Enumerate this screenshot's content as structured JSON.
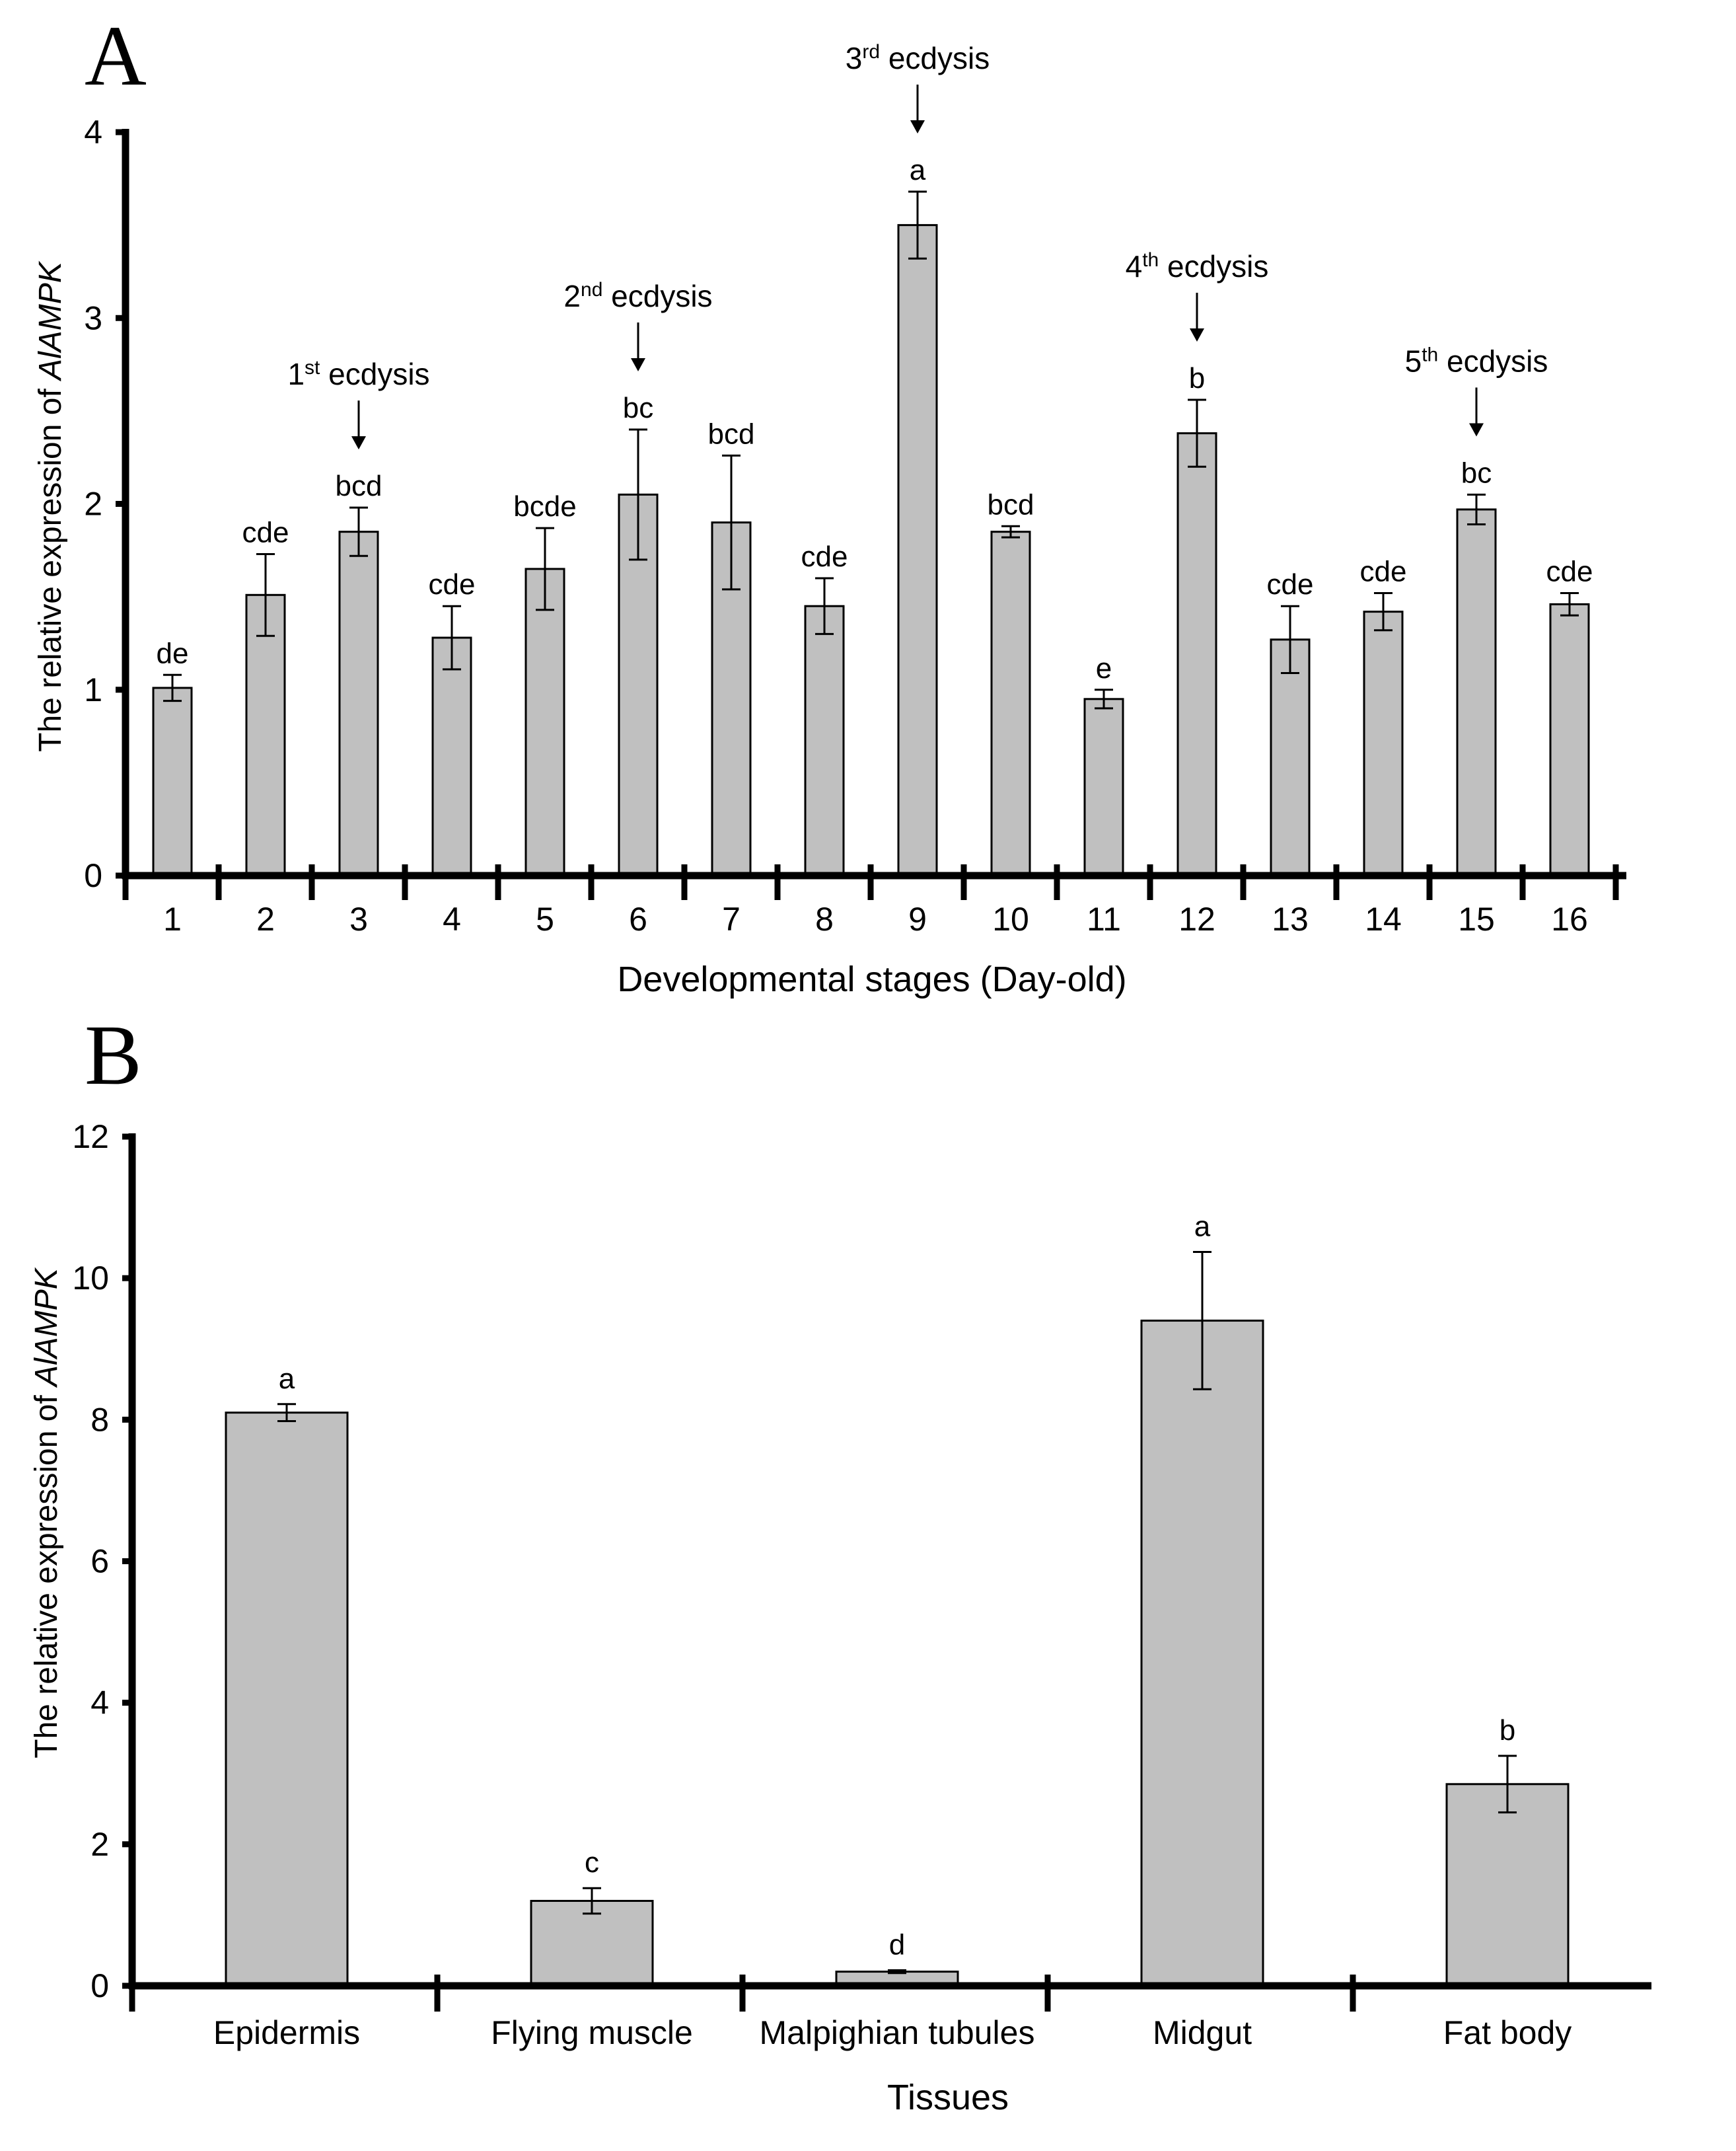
{
  "chart_data": [
    {
      "panel": "A",
      "type": "bar",
      "ylabel": {
        "prefix": "The relative expression of ",
        "gene": "AlAMPK"
      },
      "xlabel": "Developmental stages (Day-old)",
      "ylim": [
        0,
        4
      ],
      "yticks": [
        "0",
        "1",
        "2",
        "3",
        "4"
      ],
      "categories": [
        "1",
        "2",
        "3",
        "4",
        "5",
        "6",
        "7",
        "8",
        "9",
        "10",
        "11",
        "12",
        "13",
        "14",
        "15",
        "16"
      ],
      "values": [
        1.01,
        1.51,
        1.85,
        1.28,
        1.65,
        2.05,
        1.9,
        1.45,
        3.5,
        1.85,
        0.95,
        2.38,
        1.27,
        1.42,
        1.97,
        1.46
      ],
      "errors": [
        0.07,
        0.22,
        0.13,
        0.17,
        0.22,
        0.35,
        0.36,
        0.15,
        0.18,
        0.03,
        0.05,
        0.18,
        0.18,
        0.1,
        0.08,
        0.06
      ],
      "significance": [
        "de",
        "cde",
        "bcd",
        "cde",
        "bcde",
        "bc",
        "bcd",
        "cde",
        "a",
        "bcd",
        "e",
        "b",
        "cde",
        "cde",
        "bc",
        "cde"
      ],
      "annotations": [
        {
          "category": "3",
          "ordinal": "1",
          "suffix": "st",
          "label": "ecdysis"
        },
        {
          "category": "6",
          "ordinal": "2",
          "suffix": "nd",
          "label": "ecdysis"
        },
        {
          "category": "9",
          "ordinal": "3",
          "suffix": "rd",
          "label": "ecdysis"
        },
        {
          "category": "12",
          "ordinal": "4",
          "suffix": "th",
          "label": "ecdysis"
        },
        {
          "category": "15",
          "ordinal": "5",
          "suffix": "th",
          "label": "ecdysis"
        }
      ]
    },
    {
      "panel": "B",
      "type": "bar",
      "ylabel": {
        "prefix": "The  relative expression of ",
        "gene": "AlAMPK"
      },
      "xlabel": "Tissues",
      "ylim": [
        0,
        12
      ],
      "yticks": [
        "0",
        "2",
        "4",
        "6",
        "8",
        "10",
        "12"
      ],
      "categories": [
        "Epidermis",
        "Flying muscle",
        "Malpighian tubules",
        "Midgut",
        "Fat body"
      ],
      "values": [
        8.1,
        1.2,
        0.2,
        9.4,
        2.85
      ],
      "errors": [
        0.12,
        0.18,
        0.02,
        0.97,
        0.4
      ],
      "significance": [
        "a",
        "c",
        "d",
        "a",
        "b"
      ]
    }
  ]
}
